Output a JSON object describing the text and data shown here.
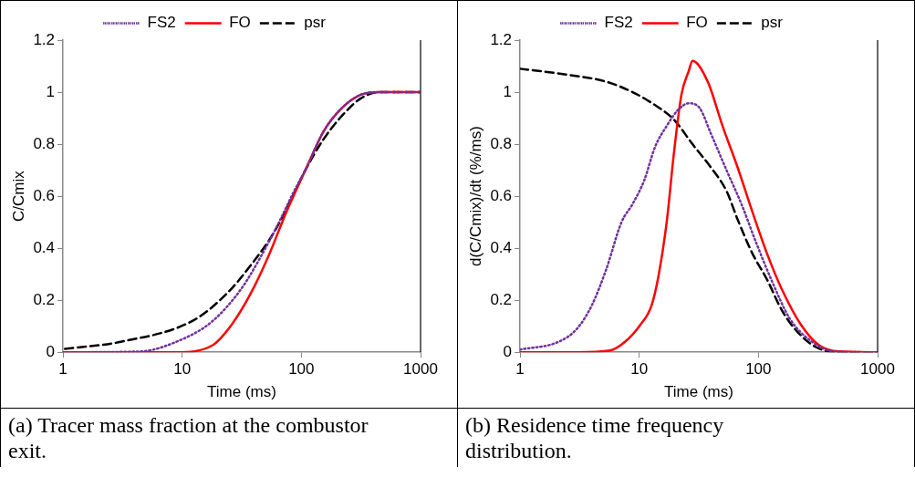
{
  "chart_data": [
    {
      "type": "line",
      "xlabel": "Time (ms)",
      "ylabel": "C/Cmix",
      "log": "x",
      "xlim": [
        1,
        1000
      ],
      "xticks": [
        1,
        10,
        100,
        1000
      ],
      "ylim": [
        0,
        1.2
      ],
      "yticks": [
        0,
        0.2,
        0.4,
        0.6,
        0.8,
        1,
        1.2
      ],
      "grid": false,
      "legend": "top",
      "marker": "none",
      "annotations": [
        "(a) Tracer mass fraction at the combustor exit."
      ],
      "series": [
        {
          "name": "FS2",
          "color": "#7030a0",
          "line_style": "dotted",
          "x": [
            1,
            4.4,
            8.9,
            18,
            32,
            46,
            65,
            87,
            108,
            154,
            220,
            315,
            450,
            1000
          ],
          "values": [
            0,
            0.003,
            0.04,
            0.12,
            0.25,
            0.37,
            0.5,
            0.62,
            0.7,
            0.85,
            0.94,
            0.99,
            1,
            1
          ]
        },
        {
          "name": "FO",
          "color": "#ff0000",
          "line_style": "solid",
          "x": [
            1,
            8.9,
            18,
            26,
            37,
            53,
            75,
            108,
            154,
            220,
            315,
            450,
            1000
          ],
          "values": [
            0,
            0,
            0.027,
            0.106,
            0.22,
            0.37,
            0.54,
            0.7,
            0.85,
            0.94,
            0.99,
            1,
            1
          ]
        },
        {
          "name": "psr",
          "color": "#000000",
          "line_style": "dashed",
          "x": [
            1.04,
            3.05,
            12.7,
            24.2,
            37,
            57,
            75,
            108,
            154,
            220,
            315,
            450,
            1000
          ],
          "values": [
            0.013,
            0.04,
            0.125,
            0.23,
            0.33,
            0.45,
            0.55,
            0.7,
            0.82,
            0.91,
            0.976,
            1,
            1
          ]
        }
      ]
    },
    {
      "type": "line",
      "xlabel": "Time (ms)",
      "ylabel": "d(C/Cmix)/dt (%/ms)",
      "log": "x",
      "xlim": [
        1,
        1000
      ],
      "xticks": [
        1,
        10,
        100,
        1000
      ],
      "ylim": [
        0,
        1.2
      ],
      "yticks": [
        0,
        0.2,
        0.4,
        0.6,
        0.8,
        1,
        1.2
      ],
      "grid": false,
      "legend": "top",
      "marker": "none",
      "annotations": [
        "(b) Residence time frequency distribution."
      ],
      "series": [
        {
          "name": "FS2",
          "color": "#7030a0",
          "line_style": "dotted",
          "x": [
            1,
            2.1,
            3,
            4,
            5.3,
            7.1,
            8.8,
            11,
            13.6,
            17,
            21,
            26,
            32,
            40,
            54,
            72,
            96,
            128,
            183,
            282,
            435,
            1000
          ],
          "values": [
            0.01,
            0.04,
            0.09,
            0.18,
            0.32,
            0.5,
            0.57,
            0.66,
            0.79,
            0.87,
            0.93,
            0.957,
            0.94,
            0.84,
            0.7,
            0.57,
            0.42,
            0.28,
            0.13,
            0.04,
            0.003,
            0
          ]
        },
        {
          "name": "FO",
          "color": "#ff0000",
          "line_style": "solid",
          "x": [
            1,
            3,
            5.7,
            7.6,
            10.2,
            12.7,
            14.6,
            17,
            19.5,
            22.6,
            26,
            28,
            37.6,
            50,
            67,
            89,
            118,
            158,
            228,
            325,
            470,
            1000
          ],
          "values": [
            0,
            0,
            0.007,
            0.04,
            0.105,
            0.18,
            0.3,
            0.5,
            0.76,
            0.99,
            1.08,
            1.12,
            1.04,
            0.87,
            0.71,
            0.54,
            0.38,
            0.24,
            0.105,
            0.026,
            0.003,
            0
          ]
        },
        {
          "name": "psr",
          "color": "#000000",
          "line_style": "dashed",
          "x": [
            1,
            2.6,
            5.3,
            8.8,
            13.6,
            19.5,
            28,
            40,
            54,
            67,
            89,
            118,
            158,
            211,
            303,
            470,
            1000
          ],
          "values": [
            1.09,
            1.066,
            1.04,
            1,
            0.95,
            0.895,
            0.8,
            0.71,
            0.62,
            0.51,
            0.38,
            0.28,
            0.16,
            0.08,
            0.02,
            0,
            0
          ]
        }
      ]
    }
  ]
}
